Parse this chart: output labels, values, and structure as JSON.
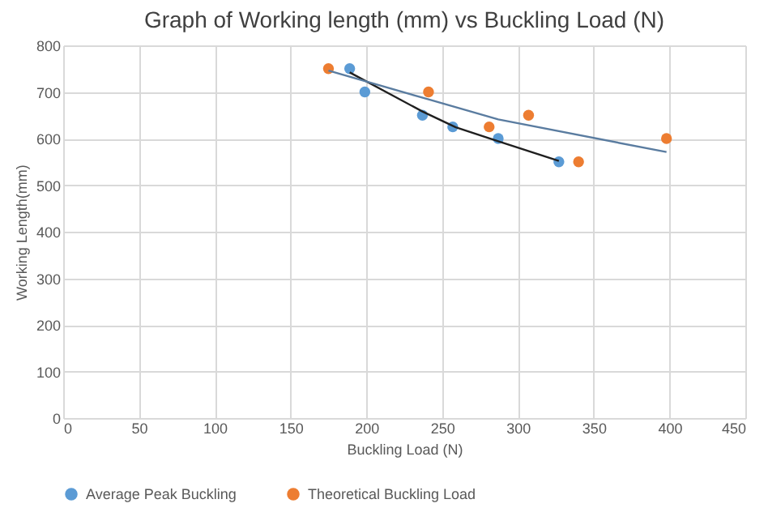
{
  "chart_data": {
    "type": "scatter",
    "title": "Graph of Working length (mm) vs Buckling Load (N)",
    "xlabel": "Buckling Load (N)",
    "ylabel": "Working Length(mm)",
    "xlim": [
      0,
      450
    ],
    "xticks": [
      0,
      50,
      100,
      150,
      200,
      250,
      300,
      350,
      400,
      450
    ],
    "ylim": [
      0,
      800
    ],
    "yticks": [
      0,
      100,
      200,
      300,
      400,
      500,
      600,
      700,
      800
    ],
    "grid": true,
    "legend": "bottom",
    "marker": "circle",
    "series": [
      {
        "name": "Average Peak Buckling",
        "color": "#5b9bd5",
        "x": [
          189,
          199,
          237,
          257,
          287,
          327
        ],
        "values": [
          750,
          700,
          650,
          625,
          600,
          550
        ]
      },
      {
        "name": "Theoretical Buckling Load",
        "color": "#ed7d31",
        "x": [
          175,
          241,
          281,
          307,
          340,
          398
        ],
        "values": [
          750,
          700,
          625,
          650,
          550,
          600
        ]
      },
      {
        "type": "line",
        "color": "#1f1f1f",
        "marker": "none",
        "x": [
          189,
          237,
          259,
          287,
          327
        ],
        "values": [
          742,
          658,
          624,
          594,
          552
        ]
      },
      {
        "type": "line",
        "color": "#5a7ca0",
        "marker": "none",
        "x": [
          175,
          241,
          287,
          398
        ],
        "values": [
          746,
          684,
          641,
          571
        ]
      }
    ]
  }
}
